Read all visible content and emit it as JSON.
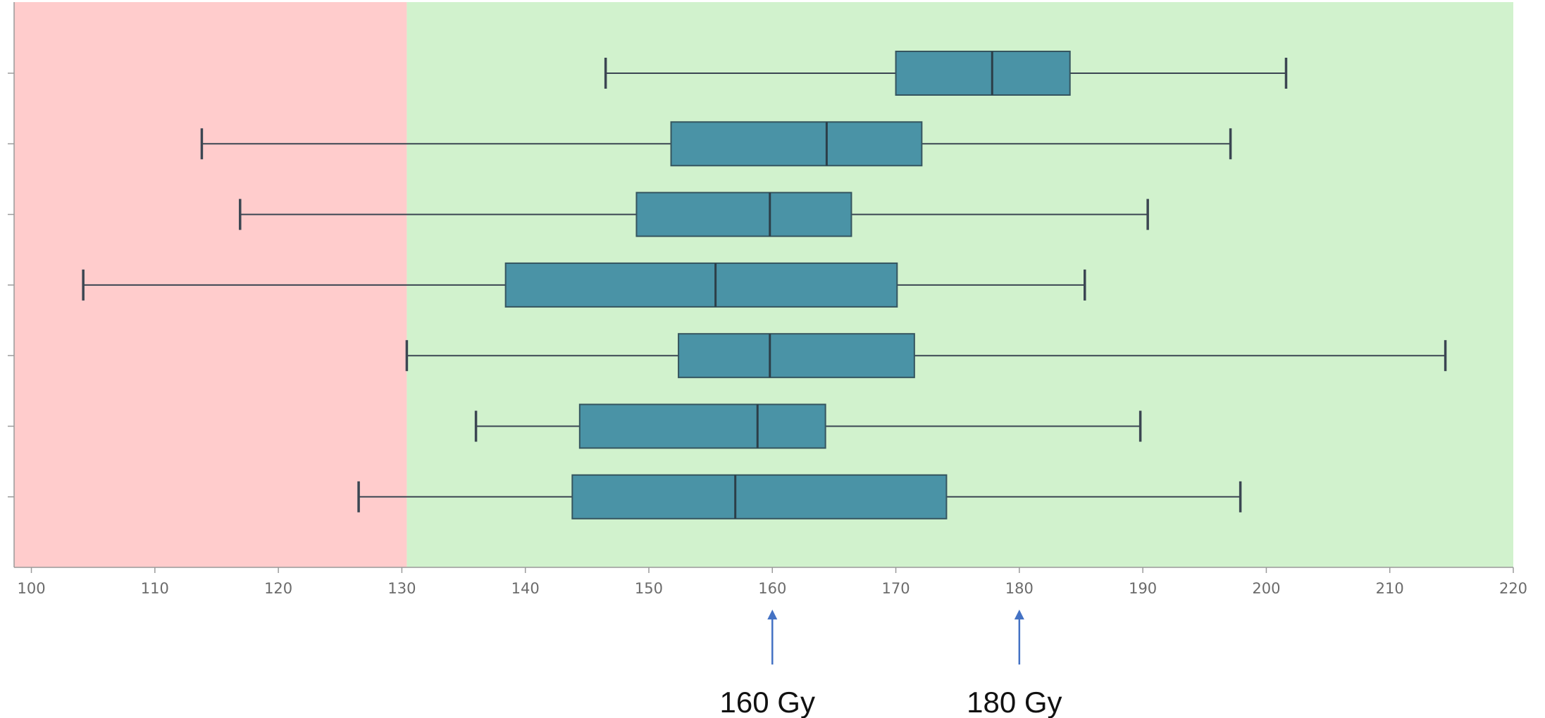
{
  "chart_data": {
    "type": "boxplot",
    "orientation": "horizontal",
    "title": "",
    "xlabel": "",
    "ylabel": "",
    "xlim": [
      98.6,
      220
    ],
    "x_ticks": [
      100,
      110,
      120,
      130,
      140,
      150,
      160,
      170,
      180,
      190,
      200,
      210,
      220
    ],
    "grid": false,
    "regions": [
      {
        "from": 98.6,
        "to": 130.4,
        "color": "#ffcccc"
      },
      {
        "from": 130.4,
        "to": 220,
        "color": "#d1f2cd"
      }
    ],
    "box_color": "#4a93a6",
    "box_stroke": "#35555f",
    "whisker_color": "#3b4652",
    "boxes": [
      {
        "min": 146.5,
        "q1": 170.0,
        "median": 177.8,
        "q3": 184.1,
        "max": 201.6
      },
      {
        "min": 113.8,
        "q1": 151.8,
        "median": 164.4,
        "q3": 172.1,
        "max": 197.1
      },
      {
        "min": 116.9,
        "q1": 149.0,
        "median": 159.8,
        "q3": 166.4,
        "max": 190.4
      },
      {
        "min": 104.2,
        "q1": 138.4,
        "median": 155.4,
        "q3": 170.1,
        "max": 185.3
      },
      {
        "min": 130.4,
        "q1": 152.4,
        "median": 159.8,
        "q3": 171.5,
        "max": 214.5
      },
      {
        "min": 136.0,
        "q1": 144.4,
        "median": 158.8,
        "q3": 164.3,
        "max": 189.8
      },
      {
        "min": 126.5,
        "q1": 143.8,
        "median": 157.0,
        "q3": 174.1,
        "max": 197.9
      }
    ],
    "annotations": [
      {
        "x": 160,
        "text": "160 Gy",
        "color": "#4472c4"
      },
      {
        "x": 180,
        "text": "180 Gy",
        "color": "#4472c4"
      }
    ]
  }
}
